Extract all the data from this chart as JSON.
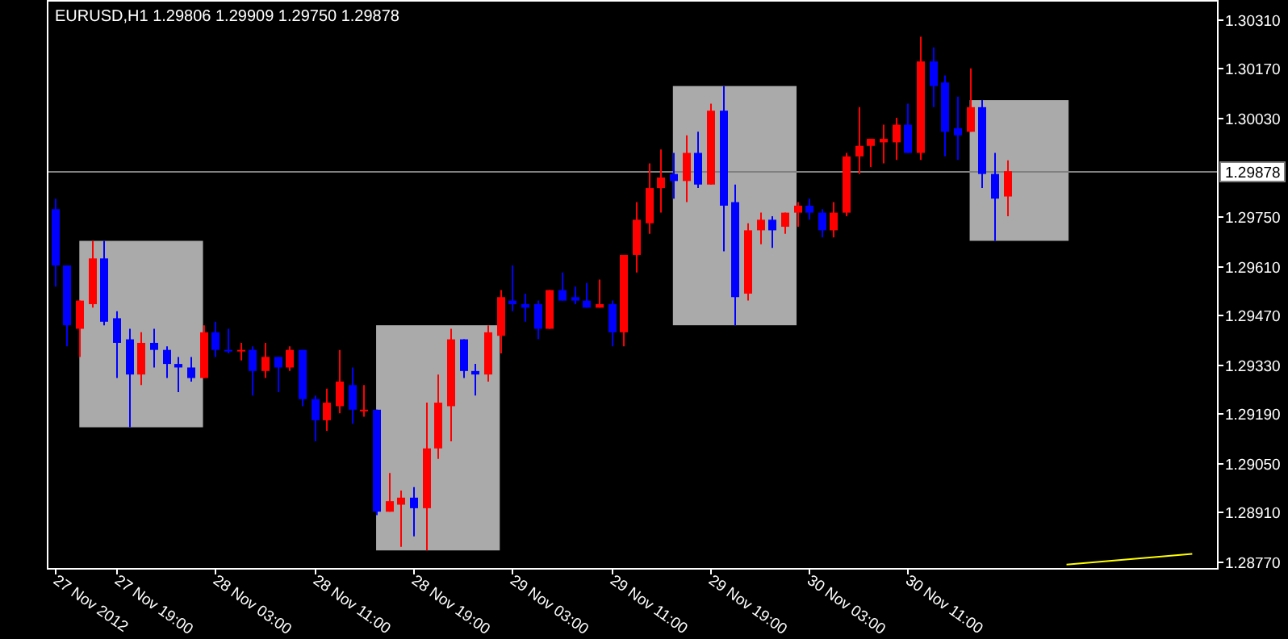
{
  "chart_data": {
    "type": "candlestick",
    "title": "EURUSD,H1  1.29806 1.29909 1.29750 1.29878",
    "x": [
      "2012-11-27T14:00",
      "2012-11-27T15:00",
      "2012-11-27T16:00",
      "2012-11-27T17:00",
      "2012-11-27T18:00",
      "2012-11-27T19:00",
      "2012-11-27T20:00",
      "2012-11-27T21:00",
      "2012-11-27T22:00",
      "2012-11-27T23:00",
      "2012-11-28T00:00",
      "2012-11-28T01:00",
      "2012-11-28T02:00",
      "2012-11-28T03:00",
      "2012-11-28T04:00",
      "2012-11-28T05:00",
      "2012-11-28T06:00",
      "2012-11-28T07:00",
      "2012-11-28T08:00",
      "2012-11-28T09:00",
      "2012-11-28T10:00",
      "2012-11-28T11:00",
      "2012-11-28T12:00",
      "2012-11-28T13:00",
      "2012-11-28T14:00",
      "2012-11-28T15:00",
      "2012-11-28T16:00",
      "2012-11-28T17:00",
      "2012-11-28T18:00",
      "2012-11-28T19:00",
      "2012-11-28T20:00",
      "2012-11-28T21:00",
      "2012-11-28T22:00",
      "2012-11-28T23:00",
      "2012-11-29T00:00",
      "2012-11-29T01:00",
      "2012-11-29T02:00",
      "2012-11-29T03:00",
      "2012-11-29T04:00",
      "2012-11-29T05:00",
      "2012-11-29T06:00",
      "2012-11-29T07:00",
      "2012-11-29T08:00",
      "2012-11-29T09:00",
      "2012-11-29T10:00",
      "2012-11-29T11:00",
      "2012-11-29T12:00",
      "2012-11-29T13:00",
      "2012-11-29T14:00",
      "2012-11-29T15:00",
      "2012-11-29T16:00",
      "2012-11-29T17:00",
      "2012-11-29T18:00",
      "2012-11-29T19:00",
      "2012-11-29T20:00",
      "2012-11-29T21:00",
      "2012-11-29T22:00",
      "2012-11-29T23:00",
      "2012-11-30T00:00",
      "2012-11-30T01:00",
      "2012-11-30T02:00",
      "2012-11-30T03:00",
      "2012-11-30T04:00",
      "2012-11-30T05:00",
      "2012-11-30T06:00",
      "2012-11-30T07:00",
      "2012-11-30T08:00",
      "2012-11-30T09:00",
      "2012-11-30T10:00",
      "2012-11-30T11:00",
      "2012-11-30T12:00",
      "2012-11-30T13:00",
      "2012-11-30T14:00",
      "2012-11-30T15:00",
      "2012-11-30T16:00",
      "2012-11-30T17:00",
      "2012-11-30T18:00",
      "2012-11-30T19:00"
    ],
    "ohlc": [
      [
        1.2977,
        1.298,
        1.2955,
        1.2961
      ],
      [
        1.2961,
        1.2961,
        1.2938,
        1.2944
      ],
      [
        1.2943,
        1.2951,
        1.2935,
        1.2951
      ],
      [
        1.295,
        1.2968,
        1.2949,
        1.2963
      ],
      [
        1.2963,
        1.2968,
        1.2944,
        1.2945
      ],
      [
        1.2946,
        1.2948,
        1.2929,
        1.2939
      ],
      [
        1.294,
        1.2943,
        1.2915,
        1.293
      ],
      [
        1.293,
        1.2942,
        1.2927,
        1.2939
      ],
      [
        1.2939,
        1.2943,
        1.2932,
        1.2937
      ],
      [
        1.2937,
        1.2938,
        1.2929,
        1.2933
      ],
      [
        1.2933,
        1.2935,
        1.2925,
        1.2932
      ],
      [
        1.2932,
        1.2935,
        1.2928,
        1.2929
      ],
      [
        1.2929,
        1.2944,
        1.2929,
        1.2942
      ],
      [
        1.2942,
        1.2945,
        1.2935,
        1.2937
      ],
      [
        1.2937,
        1.2943,
        1.2936,
        1.2937
      ],
      [
        1.2937,
        1.2939,
        1.2934,
        1.2937
      ],
      [
        1.2937,
        1.2938,
        1.2924,
        1.2931
      ],
      [
        1.2931,
        1.2939,
        1.2929,
        1.2935
      ],
      [
        1.2935,
        1.2935,
        1.2925,
        1.2932
      ],
      [
        1.2932,
        1.2938,
        1.2931,
        1.2937
      ],
      [
        1.2937,
        1.2937,
        1.2921,
        1.2923
      ],
      [
        1.2923,
        1.2924,
        1.2911,
        1.2917
      ],
      [
        1.2917,
        1.2926,
        1.2914,
        1.2922
      ],
      [
        1.2921,
        1.2937,
        1.2919,
        1.2928
      ],
      [
        1.2927,
        1.2932,
        1.2916,
        1.292
      ],
      [
        1.292,
        1.2927,
        1.2918,
        1.292
      ],
      [
        1.292,
        1.292,
        1.289,
        1.2891
      ],
      [
        1.2891,
        1.2902,
        1.2891,
        1.2894
      ],
      [
        1.2893,
        1.2897,
        1.2881,
        1.2895
      ],
      [
        1.2895,
        1.2898,
        1.2884,
        1.2892
      ],
      [
        1.2892,
        1.2922,
        1.288,
        1.2909
      ],
      [
        1.2909,
        1.293,
        1.2906,
        1.2922
      ],
      [
        1.2921,
        1.2943,
        1.2911,
        1.294
      ],
      [
        1.294,
        1.294,
        1.2929,
        1.2931
      ],
      [
        1.2931,
        1.2933,
        1.2924,
        1.293
      ],
      [
        1.293,
        1.2944,
        1.2928,
        1.2942
      ],
      [
        1.2941,
        1.2954,
        1.2936,
        1.2952
      ],
      [
        1.2951,
        1.2961,
        1.2948,
        1.295
      ],
      [
        1.295,
        1.2953,
        1.2945,
        1.2949
      ],
      [
        1.295,
        1.2951,
        1.294,
        1.2943
      ],
      [
        1.2943,
        1.2954,
        1.2943,
        1.2954
      ],
      [
        1.2954,
        1.2959,
        1.2951,
        1.2951
      ],
      [
        1.2952,
        1.2955,
        1.295,
        1.2951
      ],
      [
        1.2951,
        1.2956,
        1.2949,
        1.2949
      ],
      [
        1.2949,
        1.2957,
        1.2949,
        1.295
      ],
      [
        1.295,
        1.2951,
        1.2938,
        1.2942
      ],
      [
        1.2942,
        1.2964,
        1.2938,
        1.2964
      ],
      [
        1.2964,
        1.2979,
        1.2959,
        1.2974
      ],
      [
        1.2973,
        1.299,
        1.297,
        1.2983
      ],
      [
        1.2983,
        1.2994,
        1.2976,
        1.2986
      ],
      [
        1.2987,
        1.2993,
        1.298,
        1.2985
      ],
      [
        1.2985,
        1.2998,
        1.2979,
        1.2993
      ],
      [
        1.2993,
        1.2999,
        1.2983,
        1.2984
      ],
      [
        1.2984,
        1.3007,
        1.2984,
        1.3005
      ],
      [
        1.3005,
        1.3012,
        1.2965,
        1.2978
      ],
      [
        1.2979,
        1.2984,
        1.2944,
        1.2952
      ],
      [
        1.2953,
        1.2973,
        1.2951,
        1.2971
      ],
      [
        1.2971,
        1.2976,
        1.2967,
        1.2974
      ],
      [
        1.2974,
        1.2975,
        1.2966,
        1.2971
      ],
      [
        1.2972,
        1.2976,
        1.297,
        1.2976
      ],
      [
        1.2976,
        1.2979,
        1.2972,
        1.2978
      ],
      [
        1.2978,
        1.298,
        1.2974,
        1.2976
      ],
      [
        1.2976,
        1.2977,
        1.2969,
        1.2971
      ],
      [
        1.2971,
        1.2979,
        1.2969,
        1.2976
      ],
      [
        1.2976,
        1.2993,
        1.2975,
        1.2992
      ],
      [
        1.2992,
        1.3006,
        1.2987,
        1.2995
      ],
      [
        1.2995,
        1.2997,
        1.2989,
        1.2997
      ],
      [
        1.2996,
        1.3001,
        1.299,
        1.2997
      ],
      [
        1.2996,
        1.3003,
        1.2991,
        1.3001
      ],
      [
        1.3001,
        1.3007,
        1.2993,
        1.2993
      ],
      [
        1.2993,
        1.3026,
        1.2991,
        1.3019
      ],
      [
        1.3019,
        1.3023,
        1.3006,
        1.3012
      ],
      [
        1.3013,
        1.3015,
        1.2992,
        1.2999
      ],
      [
        1.3,
        1.3009,
        1.2991,
        1.2998
      ],
      [
        1.2999,
        1.3017,
        1.2999,
        1.3006
      ],
      [
        1.3006,
        1.3008,
        1.2983,
        1.2987
      ],
      [
        1.2987,
        1.2993,
        1.2968,
        1.298
      ],
      [
        1.29806,
        1.29909,
        1.2975,
        1.29878
      ]
    ],
    "colors": [
      "#0000ff",
      "#0000ff",
      "#ff0000",
      "#ff0000",
      "#0000ff",
      "#0000ff",
      "#0000ff",
      "#ff0000",
      "#0000ff",
      "#0000ff",
      "#0000ff",
      "#0000ff",
      "#ff0000",
      "#0000ff",
      "#0000ff",
      "#ff0000",
      "#0000ff",
      "#ff0000",
      "#0000ff",
      "#ff0000",
      "#0000ff",
      "#0000ff",
      "#ff0000",
      "#ff0000",
      "#0000ff",
      "#ff0000",
      "#0000ff",
      "#ff0000",
      "#ff0000",
      "#0000ff",
      "#ff0000",
      "#ff0000",
      "#ff0000",
      "#0000ff",
      "#0000ff",
      "#ff0000",
      "#ff0000",
      "#0000ff",
      "#0000ff",
      "#0000ff",
      "#ff0000",
      "#0000ff",
      "#0000ff",
      "#0000ff",
      "#ff0000",
      "#0000ff",
      "#ff0000",
      "#ff0000",
      "#ff0000",
      "#ff0000",
      "#0000ff",
      "#ff0000",
      "#0000ff",
      "#ff0000",
      "#0000ff",
      "#0000ff",
      "#ff0000",
      "#ff0000",
      "#0000ff",
      "#ff0000",
      "#ff0000",
      "#0000ff",
      "#0000ff",
      "#ff0000",
      "#ff0000",
      "#ff0000",
      "#ff0000",
      "#ff0000",
      "#ff0000",
      "#0000ff",
      "#ff0000",
      "#0000ff",
      "#0000ff",
      "#0000ff",
      "#ff0000",
      "#0000ff",
      "#0000ff",
      "#ff0000"
    ],
    "series": [
      {
        "type": "line",
        "x": [
          "2012-11-30T23:50",
          "2012-12-01T10:00"
        ],
        "values": [
          1.2876,
          1.2879
        ],
        "color": "#ffff00"
      }
    ],
    "xlim": [
      "2012-11-27T13:30",
      "2012-12-01T12:00"
    ],
    "xticks": [
      {
        "value": "2012-11-27T14:00",
        "label": "27 Nov 2012"
      },
      {
        "value": "2012-11-27T19:00",
        "label": "27 Nov 19:00"
      },
      {
        "value": "2012-11-28T03:00",
        "label": "28 Nov 03:00"
      },
      {
        "value": "2012-11-28T11:00",
        "label": "28 Nov 11:00"
      },
      {
        "value": "2012-11-28T19:00",
        "label": "28 Nov 19:00"
      },
      {
        "value": "2012-11-29T03:00",
        "label": "29 Nov 03:00"
      },
      {
        "value": "2012-11-29T11:00",
        "label": "29 Nov 11:00"
      },
      {
        "value": "2012-11-29T19:00",
        "label": "29 Nov 19:00"
      },
      {
        "value": "2012-11-30T03:00",
        "label": "30 Nov 03:00"
      },
      {
        "value": "2012-11-30T11:00",
        "label": "30 Nov 11:00"
      }
    ],
    "ylim": [
      1.2875,
      1.3036
    ],
    "yticks": [
      {
        "value": 1.3031,
        "label": "1.30310"
      },
      {
        "value": 1.3017,
        "label": "1.30170"
      },
      {
        "value": 1.3003,
        "label": "1.30030"
      },
      {
        "value": 1.2975,
        "label": "1.29750"
      },
      {
        "value": 1.2961,
        "label": "1.29610"
      },
      {
        "value": 1.2947,
        "label": "1.29470"
      },
      {
        "value": 1.2933,
        "label": "1.29330"
      },
      {
        "value": 1.2919,
        "label": "1.29190"
      },
      {
        "value": 1.2905,
        "label": "1.29050"
      },
      {
        "value": 1.2891,
        "label": "1.28910"
      },
      {
        "value": 1.2877,
        "label": "1.28770"
      }
    ],
    "ref_lines": [
      {
        "axis": "y",
        "value": 1.29878,
        "label": "1.29878",
        "color": "#808080"
      }
    ],
    "bands": [
      {
        "axis": "x",
        "from": "2012-11-27T16:00",
        "to": "2012-11-28T02:00",
        "color": "#aaaaaa"
      },
      {
        "axis": "x",
        "from": "2012-11-28T16:00",
        "to": "2012-11-29T02:00",
        "color": "#aaaaaa"
      },
      {
        "axis": "x",
        "from": "2012-11-29T16:00",
        "to": "2012-11-30T02:00",
        "color": "#aaaaaa"
      },
      {
        "axis": "x",
        "from": "2012-11-30T16:00",
        "to": "2012-12-01T00:00",
        "color": "#aaaaaa"
      }
    ],
    "grid": false
  }
}
